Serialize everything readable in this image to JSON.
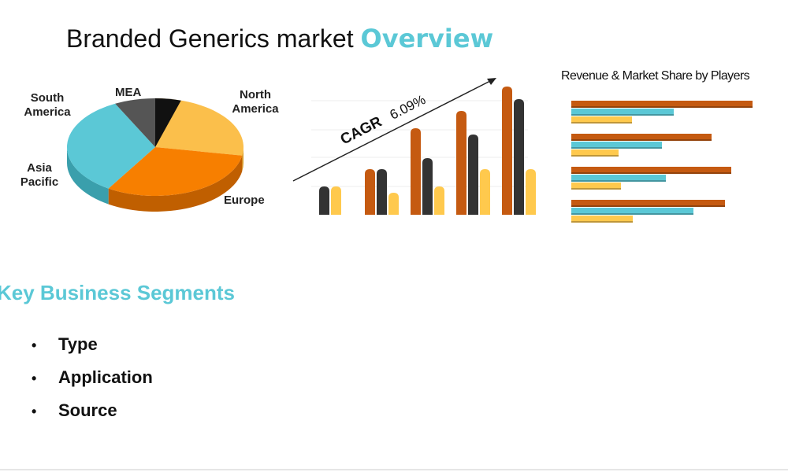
{
  "header": {
    "title": "Branded Generics market",
    "title_highlight": "Overview"
  },
  "pie_labels": [
    "North America",
    "Europe",
    "Asia Pacific",
    "South America",
    "MEA"
  ],
  "cagr": {
    "label": "CAGR",
    "value": "6.09%"
  },
  "players_title": "Revenue & Market Share by Players",
  "segments": {
    "title": "Key Business Segments",
    "items": [
      "Type",
      "Application",
      "Source"
    ]
  }
}
